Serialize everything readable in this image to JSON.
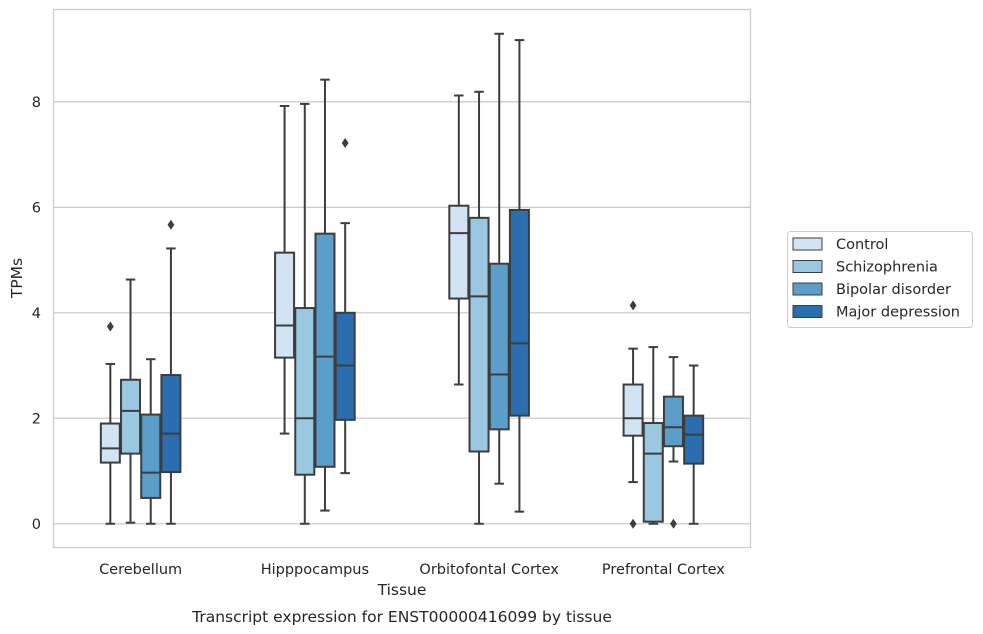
{
  "caption": "Transcript expression for ENST00000416099 by tissue",
  "chart_data": {
    "type": "boxplot",
    "title": "",
    "xlabel": "Tissue",
    "ylabel": "TPMs",
    "ylim": [
      -0.45,
      9.75
    ],
    "yticks": [
      0,
      2,
      4,
      6,
      8
    ],
    "grid": "horizontal",
    "legend_position": "right",
    "categories": [
      "Cerebellum",
      "Hipppocampus",
      "Orbitofontal Cortex",
      "Prefrontal Cortex"
    ],
    "series": [
      {
        "name": "Control",
        "color": "#d2e3f3",
        "boxes": [
          {
            "whislo": 0.0,
            "q1": 1.16,
            "med": 1.43,
            "q3": 1.9,
            "whishi": 3.03,
            "fliers": [
              3.74
            ]
          },
          {
            "whislo": 1.71,
            "q1": 3.15,
            "med": 3.76,
            "q3": 5.14,
            "whishi": 7.92,
            "fliers": []
          },
          {
            "whislo": 2.64,
            "q1": 4.27,
            "med": 5.51,
            "q3": 6.03,
            "whishi": 8.12,
            "fliers": []
          },
          {
            "whislo": 0.79,
            "q1": 1.67,
            "med": 2.0,
            "q3": 2.64,
            "whishi": 3.32,
            "fliers": [
              4.14,
              0.0
            ]
          }
        ]
      },
      {
        "name": "Schizophrenia",
        "color": "#9ac8e0",
        "boxes": [
          {
            "whislo": 0.02,
            "q1": 1.33,
            "med": 2.14,
            "q3": 2.73,
            "whishi": 4.63,
            "fliers": []
          },
          {
            "whislo": 0.0,
            "q1": 0.93,
            "med": 2.0,
            "q3": 4.09,
            "whishi": 7.96,
            "fliers": []
          },
          {
            "whislo": 0.0,
            "q1": 1.37,
            "med": 4.31,
            "q3": 5.8,
            "whishi": 8.19,
            "fliers": []
          },
          {
            "whislo": 0.0,
            "q1": 0.04,
            "med": 1.33,
            "q3": 1.91,
            "whishi": 3.35,
            "fliers": []
          }
        ]
      },
      {
        "name": "Bipolar disorder",
        "color": "#5a9ec9",
        "boxes": [
          {
            "whislo": 0.0,
            "q1": 0.49,
            "med": 0.97,
            "q3": 2.07,
            "whishi": 3.12,
            "fliers": []
          },
          {
            "whislo": 0.25,
            "q1": 1.08,
            "med": 3.17,
            "q3": 5.5,
            "whishi": 8.42,
            "fliers": []
          },
          {
            "whislo": 0.76,
            "q1": 1.79,
            "med": 2.83,
            "q3": 4.93,
            "whishi": 9.29,
            "fliers": []
          },
          {
            "whislo": 1.18,
            "q1": 1.47,
            "med": 1.83,
            "q3": 2.41,
            "whishi": 3.16,
            "fliers": [
              0.0
            ]
          }
        ]
      },
      {
        "name": "Major depression",
        "color": "#2a6eb0",
        "boxes": [
          {
            "whislo": 0.0,
            "q1": 0.98,
            "med": 1.71,
            "q3": 2.82,
            "whishi": 5.22,
            "fliers": [
              5.67
            ]
          },
          {
            "whislo": 0.96,
            "q1": 1.97,
            "med": 3.0,
            "q3": 4.0,
            "whishi": 5.7,
            "fliers": [
              7.22
            ]
          },
          {
            "whislo": 0.23,
            "q1": 2.05,
            "med": 3.42,
            "q3": 5.95,
            "whishi": 9.17,
            "fliers": []
          },
          {
            "whislo": 0.0,
            "q1": 1.14,
            "med": 1.69,
            "q3": 2.05,
            "whishi": 3.0,
            "fliers": []
          }
        ]
      }
    ]
  }
}
